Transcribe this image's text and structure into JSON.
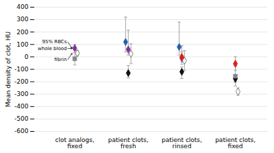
{
  "chart_data": {
    "type": "scatter",
    "categories": [
      "clot analogs,\nfixed",
      "patient clots,\nfresh",
      "patient clots,\nrinsed",
      "patient clots,\nfixed"
    ],
    "ylabel": "Mean density of clot, HU",
    "ylim": [
      -600,
      400
    ],
    "yticks": [
      -600,
      -500,
      -400,
      -300,
      -200,
      -100,
      0,
      100,
      200,
      300,
      400
    ],
    "grid": true,
    "series": [
      {
        "color": "#2060b0",
        "marker": "diamond",
        "values": [
          null,
          120,
          80,
          null
        ],
        "yerr_low": [
          null,
          80,
          65,
          null
        ],
        "yerr_high": [
          null,
          200,
          200,
          null
        ]
      },
      {
        "color": "#8030a0",
        "marker": "diamond",
        "values": [
          70,
          60,
          -10,
          -175
        ],
        "yerr_low": [
          15,
          45,
          50,
          30
        ],
        "yerr_high": [
          30,
          155,
          100,
          30
        ]
      },
      {
        "color": "#555555",
        "marker": "open_diamond",
        "values": [
          30,
          25,
          -30,
          -280
        ],
        "yerr_low": [
          20,
          80,
          80,
          30
        ],
        "yerr_high": [
          20,
          80,
          80,
          30
        ]
      },
      {
        "color": "#111111",
        "marker": "diamond",
        "values": [
          null,
          -130,
          -120,
          -175
        ],
        "yerr_low": [
          null,
          40,
          55,
          25
        ],
        "yerr_high": [
          null,
          60,
          40,
          25
        ]
      },
      {
        "color": "#888888",
        "marker": "square",
        "values": [
          -15,
          null,
          null,
          -155
        ],
        "yerr_low": [
          50,
          null,
          null,
          80
        ],
        "yerr_high": [
          50,
          null,
          null,
          80
        ]
      },
      {
        "color": "#dd2010",
        "marker": "diamond",
        "values": [
          null,
          null,
          0,
          -55
        ],
        "yerr_low": [
          null,
          null,
          40,
          55
        ],
        "yerr_high": [
          null,
          null,
          40,
          55
        ]
      }
    ],
    "annotations": [
      {
        "text": "95% RBCs",
        "category": "clot analogs,\nfixed",
        "y": 70
      },
      {
        "text": "whole blood",
        "category": "clot analogs,\nfixed",
        "y": 68
      },
      {
        "text": "fibrin",
        "category": "clot analogs,\nfixed",
        "y": 28
      }
    ]
  }
}
